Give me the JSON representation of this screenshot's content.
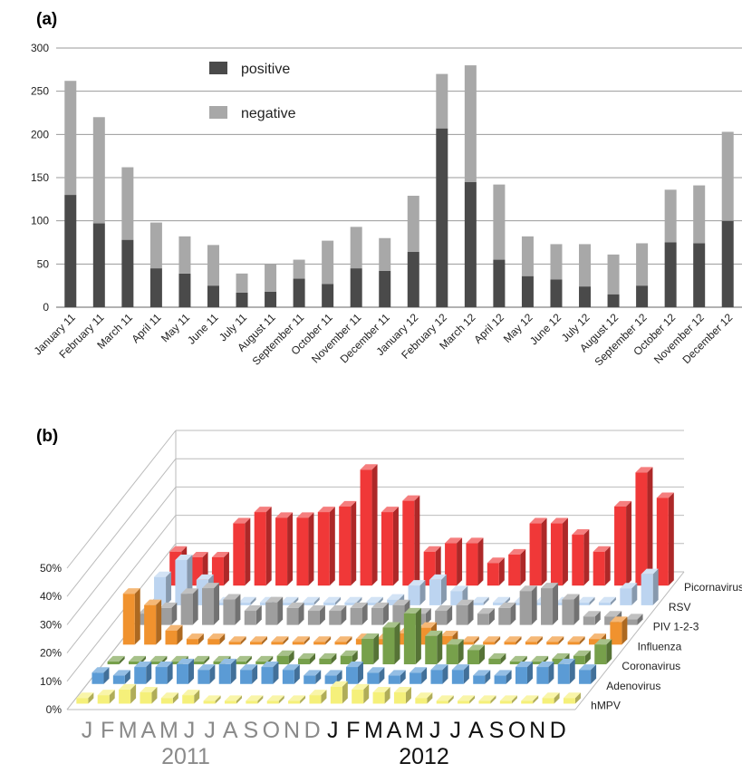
{
  "chart_data": [
    {
      "panel_label": "(a)",
      "type": "bar",
      "stacked": true,
      "categories": [
        "January 11",
        "February 11",
        "March 11",
        "April 11",
        "May 11",
        "June 11",
        "July 11",
        "August 11",
        "September 11",
        "October 11",
        "November 11",
        "December 11",
        "January 12",
        "February 12",
        "March 12",
        "April 12",
        "May 12",
        "June 12",
        "July 12",
        "August 12",
        "September 12",
        "October 12",
        "November 12",
        "December 12"
      ],
      "series": [
        {
          "name": "positive",
          "color": "#4a4a4a",
          "values": [
            130,
            97,
            78,
            45,
            39,
            25,
            17,
            18,
            33,
            27,
            45,
            42,
            64,
            207,
            145,
            55,
            36,
            32,
            24,
            15,
            25,
            75,
            74,
            100
          ]
        },
        {
          "name": "negative",
          "color": "#a8a8a8",
          "values": [
            132,
            123,
            84,
            53,
            43,
            47,
            22,
            32,
            22,
            50,
            48,
            38,
            65,
            63,
            135,
            87,
            46,
            41,
            49,
            46,
            49,
            61,
            67,
            103
          ]
        }
      ],
      "ylim": [
        0,
        300
      ],
      "yticks": [
        "0",
        "50",
        "100",
        "150",
        "200",
        "250",
        "300"
      ],
      "grid": true,
      "legend_position": "top-center"
    },
    {
      "panel_label": "(b)",
      "type": "bar",
      "style": "3d",
      "months": [
        "J",
        "F",
        "M",
        "A",
        "M",
        "J",
        "J",
        "A",
        "S",
        "O",
        "N",
        "D",
        "J",
        "F",
        "M",
        "A",
        "M",
        "J",
        "J",
        "A",
        "S",
        "O",
        "N",
        "D"
      ],
      "years": [
        "2011",
        "2012"
      ],
      "yticks": [
        "0%",
        "10%",
        "20%",
        "30%",
        "40%",
        "50%"
      ],
      "ylim": [
        0,
        50
      ],
      "series": [
        {
          "name": "hMPV",
          "color": "#f5f07a",
          "values": [
            2,
            3,
            5,
            4,
            2,
            3,
            1,
            1,
            1,
            1,
            1,
            3,
            6,
            5,
            4,
            4,
            2,
            1,
            1,
            1,
            1,
            1,
            2,
            2
          ]
        },
        {
          "name": "Adenovirus",
          "color": "#5b9bd5",
          "values": [
            4,
            3,
            6,
            6,
            7,
            5,
            7,
            5,
            6,
            5,
            3,
            3,
            6,
            4,
            3,
            4,
            5,
            5,
            3,
            3,
            6,
            6,
            7,
            5
          ]
        },
        {
          "name": "Coronavirus",
          "color": "#77a04b",
          "values": [
            1,
            1,
            1,
            1,
            1,
            1,
            1,
            1,
            3,
            2,
            2,
            3,
            9,
            13,
            18,
            10,
            7,
            5,
            2,
            1,
            1,
            2,
            3,
            7
          ]
        },
        {
          "name": "Influenza",
          "color": "#f0922e",
          "values": [
            18,
            14,
            5,
            2,
            2,
            1,
            1,
            1,
            1,
            1,
            1,
            2,
            2,
            4,
            6,
            3,
            1,
            1,
            1,
            1,
            1,
            1,
            2,
            8
          ]
        },
        {
          "name": "PIV 1-2-3",
          "color": "#9e9e9e",
          "values": [
            4,
            6,
            11,
            13,
            9,
            5,
            8,
            6,
            5,
            5,
            6,
            6,
            7,
            4,
            5,
            7,
            4,
            6,
            12,
            13,
            9,
            3,
            3,
            2
          ]
        },
        {
          "name": "RSV",
          "color": "#bcd4f0",
          "values": [
            10,
            16,
            9,
            1,
            1,
            1,
            1,
            1,
            1,
            1,
            1,
            2,
            7,
            9,
            5,
            1,
            1,
            1,
            1,
            1,
            1,
            1,
            6,
            11
          ]
        },
        {
          "name": "Picornavirus",
          "color": "#f03838",
          "values": [
            12,
            10,
            10,
            22,
            26,
            24,
            24,
            26,
            28,
            41,
            26,
            30,
            12,
            15,
            15,
            8,
            11,
            22,
            22,
            18,
            12,
            28,
            40,
            31
          ]
        }
      ]
    }
  ]
}
